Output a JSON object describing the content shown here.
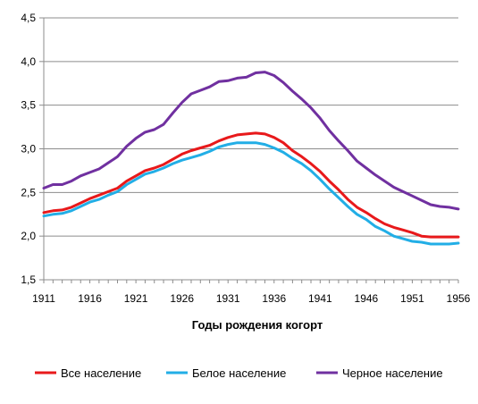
{
  "chart_data": {
    "type": "line",
    "title": "",
    "xlabel": "Годы рождения когорт",
    "ylabel": "",
    "ylim": [
      1.5,
      4.5
    ],
    "yticks": [
      "1,5",
      "2,0",
      "2,5",
      "3,0",
      "3,5",
      "4,0",
      "4,5"
    ],
    "yticks_values": [
      1.5,
      2.0,
      2.5,
      3.0,
      3.5,
      4.0,
      4.5
    ],
    "xlim": [
      1911,
      1956
    ],
    "xticks": [
      1911,
      1916,
      1921,
      1926,
      1931,
      1936,
      1941,
      1946,
      1951,
      1956
    ],
    "grid": "horizontal",
    "legend_position": "bottom",
    "x": [
      1911,
      1912,
      1913,
      1914,
      1915,
      1916,
      1917,
      1918,
      1919,
      1920,
      1921,
      1922,
      1923,
      1924,
      1925,
      1926,
      1927,
      1928,
      1929,
      1930,
      1931,
      1932,
      1933,
      1934,
      1935,
      1936,
      1937,
      1938,
      1939,
      1940,
      1941,
      1942,
      1943,
      1944,
      1945,
      1946,
      1947,
      1948,
      1949,
      1950,
      1951,
      1952,
      1953,
      1954,
      1955,
      1956
    ],
    "series": [
      {
        "name": "Все население",
        "color": "#e8191b",
        "values": [
          2.27,
          2.29,
          2.3,
          2.33,
          2.38,
          2.43,
          2.47,
          2.51,
          2.55,
          2.63,
          2.69,
          2.75,
          2.78,
          2.82,
          2.88,
          2.94,
          2.98,
          3.01,
          3.04,
          3.09,
          3.13,
          3.16,
          3.17,
          3.18,
          3.17,
          3.13,
          3.07,
          2.98,
          2.91,
          2.83,
          2.74,
          2.63,
          2.53,
          2.42,
          2.33,
          2.27,
          2.2,
          2.14,
          2.1,
          2.07,
          2.04,
          2.0,
          1.99,
          1.99,
          1.99,
          1.99
        ]
      },
      {
        "name": "Белое население",
        "color": "#22aee6",
        "values": [
          2.23,
          2.25,
          2.26,
          2.29,
          2.34,
          2.39,
          2.42,
          2.47,
          2.51,
          2.59,
          2.65,
          2.71,
          2.74,
          2.78,
          2.83,
          2.87,
          2.9,
          2.93,
          2.97,
          3.02,
          3.05,
          3.07,
          3.07,
          3.07,
          3.05,
          3.01,
          2.96,
          2.89,
          2.83,
          2.75,
          2.65,
          2.54,
          2.44,
          2.34,
          2.25,
          2.19,
          2.11,
          2.06,
          2.0,
          1.97,
          1.94,
          1.93,
          1.91,
          1.91,
          1.91,
          1.92
        ]
      },
      {
        "name": "Черное население",
        "color": "#7030a0",
        "values": [
          2.55,
          2.59,
          2.59,
          2.63,
          2.69,
          2.73,
          2.77,
          2.84,
          2.91,
          3.03,
          3.12,
          3.19,
          3.22,
          3.28,
          3.41,
          3.53,
          3.63,
          3.67,
          3.71,
          3.77,
          3.78,
          3.81,
          3.82,
          3.87,
          3.88,
          3.84,
          3.76,
          3.66,
          3.57,
          3.47,
          3.35,
          3.21,
          3.09,
          2.98,
          2.86,
          2.78,
          2.7,
          2.63,
          2.56,
          2.51,
          2.46,
          2.41,
          2.36,
          2.34,
          2.33,
          2.31
        ]
      }
    ]
  },
  "colors": {
    "grid": "#8c8c8c",
    "axis": "#8c8c8c",
    "text": "#000000"
  }
}
